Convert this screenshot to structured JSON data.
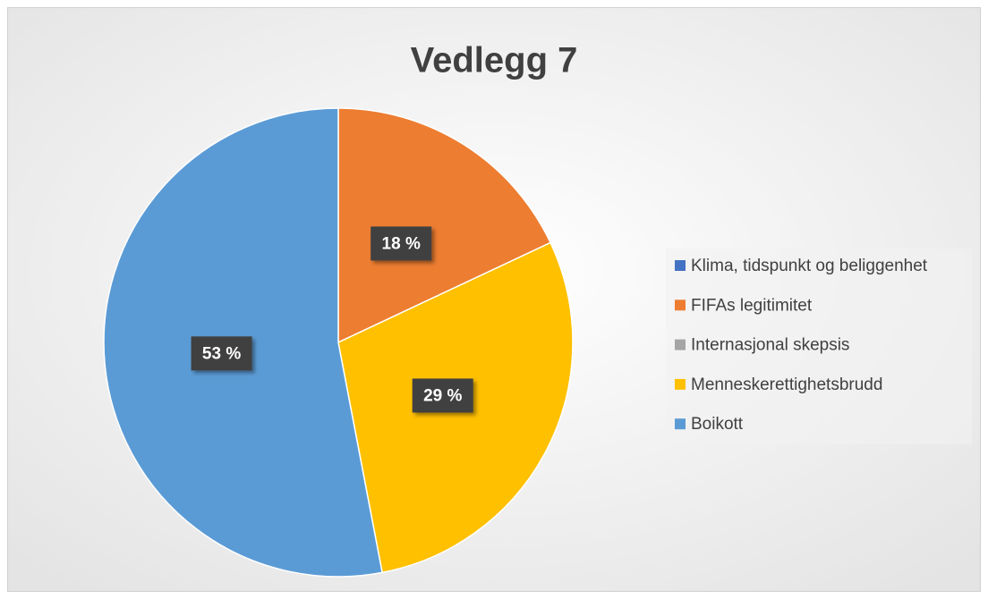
{
  "chart_data": {
    "type": "pie",
    "title": "Vedlegg 7",
    "categories": [
      "Klima, tidspunkt og beliggenhet",
      "FIFAs legitimitet",
      "Internasjonal skepsis",
      "Menneskerettighetsbrudd",
      "Boikott"
    ],
    "values": [
      0,
      18,
      0,
      29,
      53
    ],
    "value_labels": [
      null,
      "18 %",
      null,
      "29 %",
      "53 %"
    ],
    "colors": [
      "#4472c4",
      "#ed7d31",
      "#a5a5a5",
      "#ffc000",
      "#5b9bd5"
    ],
    "legend": "right"
  }
}
